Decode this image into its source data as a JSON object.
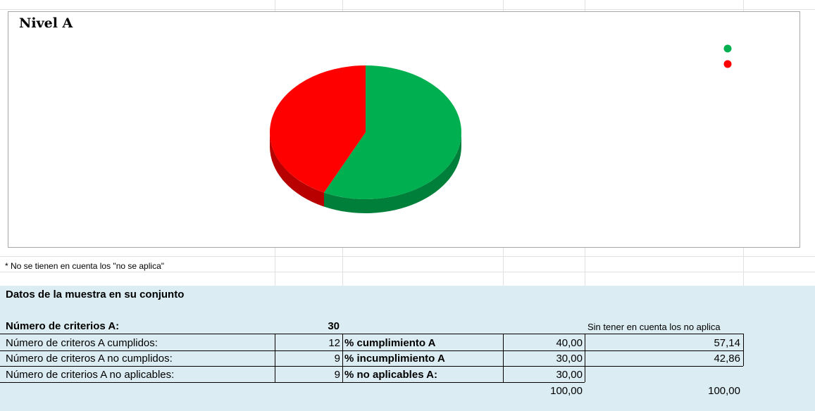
{
  "chart_data": {
    "type": "pie",
    "title": "Nivel A",
    "categories": [
      "",
      ""
    ],
    "values": [
      57.14,
      42.86
    ],
    "colors": [
      "#00b050",
      "#ff0000"
    ],
    "legend_placement": "top-right",
    "style": "3d"
  },
  "note": "* No se tienen en cuenta los \"no se aplica\"",
  "section": {
    "title": "Datos de la muestra en su conjunto",
    "total_label": "Número de criterios A:",
    "total_value": "30",
    "no_aplica_header": "Sin tener en cuenta los no aplica",
    "rows": [
      {
        "label": "Número de criteros A cumplidos:",
        "count": "12",
        "pct_label": "% cumplimiento A",
        "pct": "40,00",
        "pct_no_aplica": "57,14"
      },
      {
        "label": "Número de criteros A no cumplidos:",
        "count": "9",
        "pct_label": "% incumplimiento A",
        "pct": "30,00",
        "pct_no_aplica": "42,86"
      },
      {
        "label": "Número de criterios A no aplicables:",
        "count": "9",
        "pct_label": "% no aplicables A:",
        "pct": "30,00",
        "pct_no_aplica": ""
      }
    ],
    "total_pct": "100,00",
    "total_pct_no_aplica": "100,00"
  }
}
